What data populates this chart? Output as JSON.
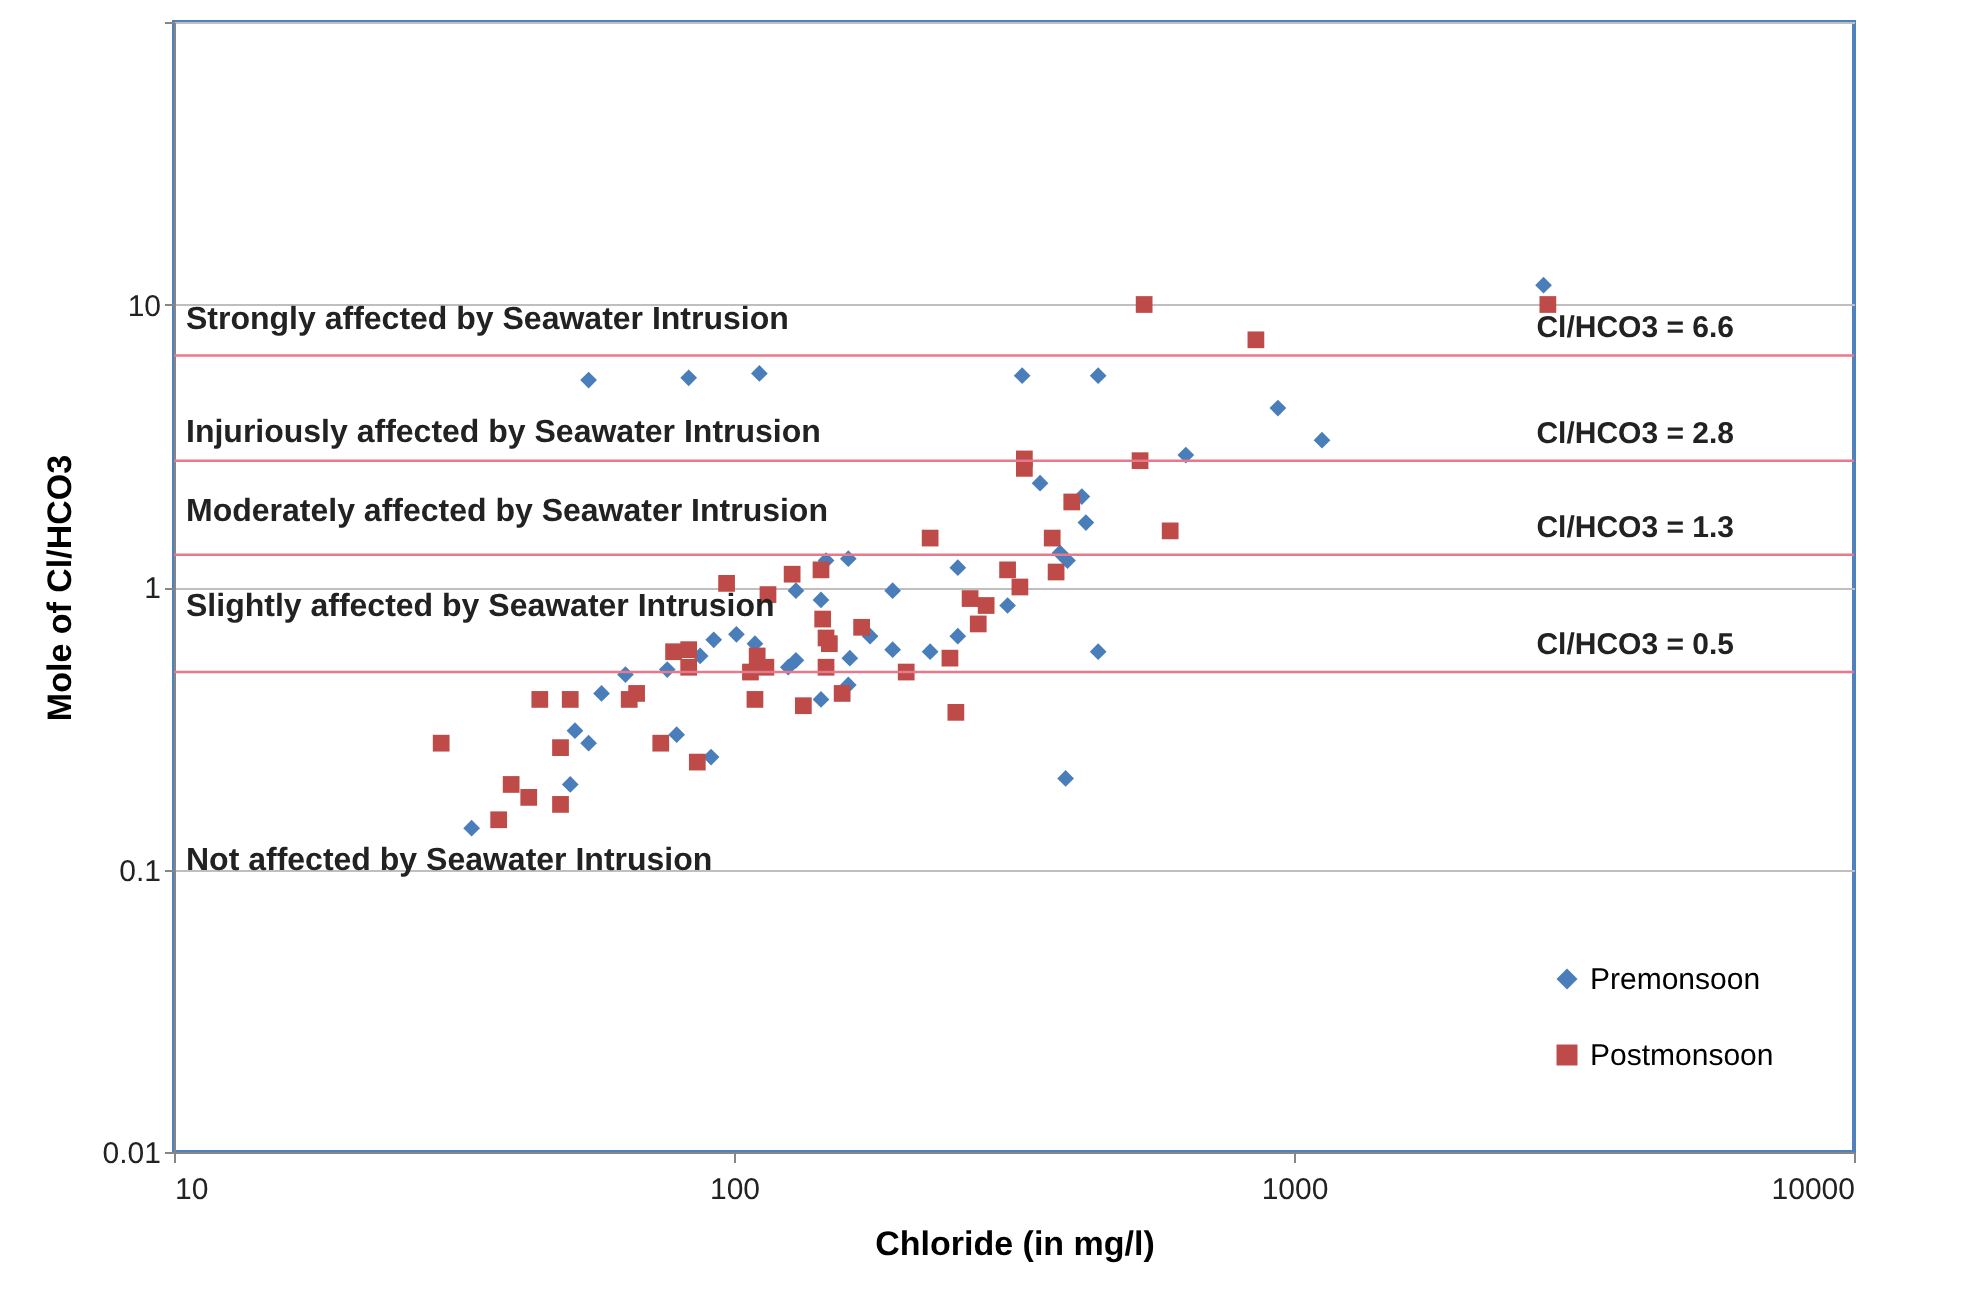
{
  "chart_data": {
    "type": "scatter",
    "xlabel": "Chloride (in mg/l)",
    "ylabel": "Mole of Cl/HCO3",
    "log": "xy",
    "xlim": [
      10,
      10000
    ],
    "xticks": [
      10,
      100,
      1000,
      10000
    ],
    "ylim": [
      0.01,
      100
    ],
    "yticks": [
      0.01,
      0.1,
      1,
      10,
      {
        "value": 100,
        "label": null
      }
    ],
    "grid": "y",
    "legend": "bottom right",
    "series": [
      {
        "name": "Premonsoon",
        "color": "#4a7ebb",
        "marker": "diamond",
        "x": [
          34,
          55,
          83,
          111,
          327,
          447,
          51,
          52,
          55,
          58,
          64,
          76,
          79,
          87,
          91,
          92,
          101,
          109,
          125,
          129,
          129,
          143,
          143,
          146,
          160,
          160,
          161,
          175,
          192,
          192,
          224,
          251,
          251,
          308,
          352,
          382,
          394,
          418,
          425,
          447,
          391,
          641,
          936,
          1122,
          2790
        ],
        "values": [
          0.14,
          5.4,
          5.5,
          5.7,
          5.6,
          5.6,
          0.2,
          0.31,
          0.28,
          0.42,
          0.49,
          0.51,
          0.3,
          0.57,
          0.25,
          0.65,
          0.68,
          0.63,
          0.52,
          0.55,
          0.97,
          0.9,
          0.4,
          1.24,
          1.26,
          0.45,
          0.56,
          0.67,
          0.97,
          0.6,
          0.59,
          1.17,
          0.67,
          0.86,
          2.33,
          1.32,
          1.24,
          2.09,
          1.69,
          0.59,
          0.21,
          2.93,
          4.3,
          3.31,
          11.7
        ]
      },
      {
        "name": "Postmonsoon",
        "color": "#be4b48",
        "marker": "square",
        "x": [
          30,
          38,
          40,
          43,
          45,
          49,
          49,
          51,
          65,
          67,
          74,
          86,
          78,
          83,
          83,
          97,
          115,
          127,
          143,
          107,
          110,
          114,
          109,
          133,
          146,
          146,
          144,
          148,
          156,
          169,
          203,
          224,
          540,
          855,
          330,
          330,
          531,
          401,
          601,
          370,
          308,
          376,
          324,
          264,
          282,
          273,
          243,
          249,
          2840
        ],
        "values": [
          0.28,
          0.15,
          0.2,
          0.18,
          0.4,
          0.27,
          0.17,
          0.4,
          0.4,
          0.42,
          0.28,
          0.24,
          0.59,
          0.6,
          0.52,
          1.03,
          0.94,
          1.11,
          1.15,
          0.5,
          0.57,
          0.52,
          0.4,
          0.38,
          0.52,
          0.66,
          0.77,
          0.63,
          0.42,
          0.72,
          0.5,
          1.49,
          10,
          7.5,
          2.84,
          2.63,
          2.8,
          2.0,
          1.58,
          1.49,
          1.15,
          1.13,
          1.0,
          0.91,
          0.86,
          0.74,
          0.56,
          0.36,
          10
        ]
      }
    ],
    "ref_lines": [
      {
        "axis": "y",
        "value": 6.6,
        "label": "Cl/HCO3 = 6.6",
        "color": "#e8798a"
      },
      {
        "axis": "y",
        "value": 2.8,
        "label": "Cl/HCO3 = 2.8",
        "color": "#e8798a"
      },
      {
        "axis": "y",
        "value": 1.3,
        "label": "Cl/HCO3 = 1.3",
        "color": "#e8798a"
      },
      {
        "axis": "y",
        "value": 0.5,
        "label": "Cl/HCO3 = 0.5",
        "color": "#e8798a"
      }
    ],
    "annotations": [
      "Strongly affected by Seawater Intrusion",
      "Injuriously affected by Seawater Intrusion",
      "Moderately affected by Seawater Intrusion",
      "Slightly affected by Seawater Intrusion",
      "Not affected by Seawater Intrusion"
    ]
  }
}
